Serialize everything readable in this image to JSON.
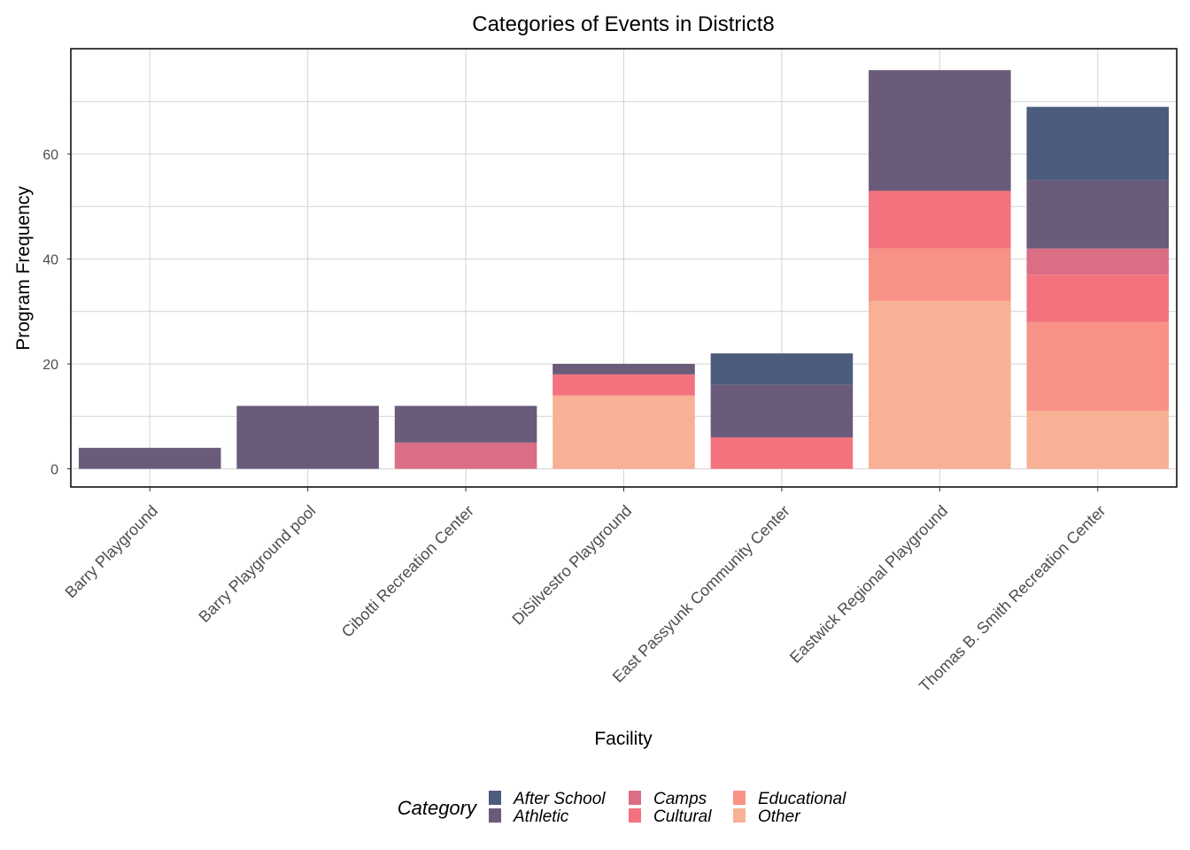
{
  "chart_data": {
    "type": "bar",
    "stacked": true,
    "title": "Categories of Events in District8",
    "xlabel": "Facility",
    "ylabel": "Program Frequency",
    "ylim": [
      0,
      80
    ],
    "yticks": [
      0,
      20,
      40,
      60
    ],
    "grid": true,
    "categories": [
      "Barry Playground",
      "Barry Playground pool",
      "Cibotti Recreation Center",
      "DiSilvestro Playground",
      "East Passyunk Community Center",
      "Eastwick Regional Playground",
      "Thomas B. Smith Recreation Center"
    ],
    "series": [
      {
        "name": "After School",
        "color": "#4c5c7d",
        "values": [
          0,
          0,
          0,
          0,
          6,
          0,
          14
        ]
      },
      {
        "name": "Athletic",
        "color": "#6b5b7b",
        "values": [
          4,
          12,
          7,
          2,
          10,
          23,
          13
        ]
      },
      {
        "name": "Camps",
        "color": "#db6e84",
        "values": [
          0,
          0,
          5,
          0,
          0,
          0,
          5
        ]
      },
      {
        "name": "Cultural",
        "color": "#f3727d",
        "values": [
          0,
          0,
          0,
          4,
          6,
          11,
          9
        ]
      },
      {
        "name": "Educational",
        "color": "#f89286",
        "values": [
          0,
          0,
          0,
          0,
          0,
          10,
          17
        ]
      },
      {
        "name": "Other",
        "color": "#f8b194",
        "values": [
          0,
          0,
          0,
          14,
          0,
          32,
          11
        ]
      }
    ],
    "legend": {
      "title": "Category",
      "position": "bottom"
    }
  }
}
